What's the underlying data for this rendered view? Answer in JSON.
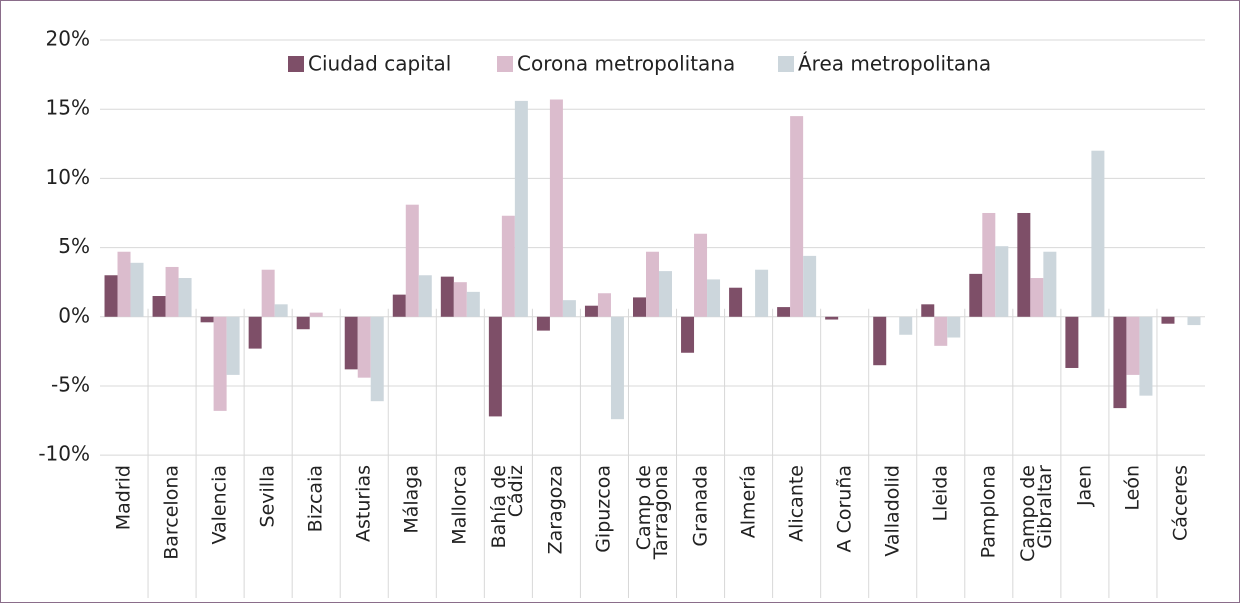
{
  "chart_data": {
    "type": "bar",
    "categories": [
      "Madrid",
      "Barcelona",
      "Valencia",
      "Sevilla",
      "Bizcaia",
      "Asturias",
      "Málaga",
      "Mallorca",
      "Bahía de\nCádiz",
      "Zaragoza",
      "Gipuzcoa",
      "Camp de\nTarragona",
      "Granada",
      "Almería",
      "Alicante",
      "A Coruña",
      "Valladolid",
      "Lleida",
      "Pamplona",
      "Campo de\nGibraltar",
      "Jaen",
      "León",
      "Cáceres"
    ],
    "series": [
      {
        "name": "Ciudad capital",
        "color": "#7e4f68",
        "values": [
          3.0,
          1.5,
          -0.4,
          -2.3,
          -0.9,
          -3.8,
          1.6,
          2.9,
          -7.2,
          -1.0,
          0.8,
          1.4,
          -2.6,
          2.1,
          0.7,
          -0.2,
          -3.5,
          0.9,
          3.1,
          7.5,
          -3.7,
          -6.6,
          -0.5
        ]
      },
      {
        "name": "Corona metropolitana",
        "color": "#dbbccd",
        "values": [
          4.7,
          3.6,
          -6.8,
          3.4,
          0.3,
          -4.4,
          8.1,
          2.5,
          7.3,
          15.7,
          1.7,
          4.7,
          6.0,
          0,
          14.5,
          0,
          0,
          -2.1,
          7.5,
          2.8,
          0,
          -4.2,
          0
        ]
      },
      {
        "name": "Área metropolitana",
        "color": "#ccd6dc",
        "values": [
          3.9,
          2.8,
          -4.2,
          0.9,
          0,
          -6.1,
          3.0,
          1.8,
          15.6,
          1.2,
          -7.4,
          3.3,
          2.7,
          3.4,
          4.4,
          0,
          -1.3,
          -1.5,
          5.1,
          4.7,
          12.0,
          -5.7,
          -0.6
        ]
      }
    ],
    "ylim": [
      -11,
      20
    ],
    "yticks": [
      {
        "value": -10,
        "label": "-10%"
      },
      {
        "value": -5,
        "label": "-5%"
      },
      {
        "value": 0,
        "label": "0%"
      },
      {
        "value": 5,
        "label": "5%"
      },
      {
        "value": 10,
        "label": "10%"
      },
      {
        "value": 15,
        "label": "15%"
      },
      {
        "value": 20,
        "label": "20%"
      }
    ],
    "grid": true,
    "legend": "upper center"
  }
}
